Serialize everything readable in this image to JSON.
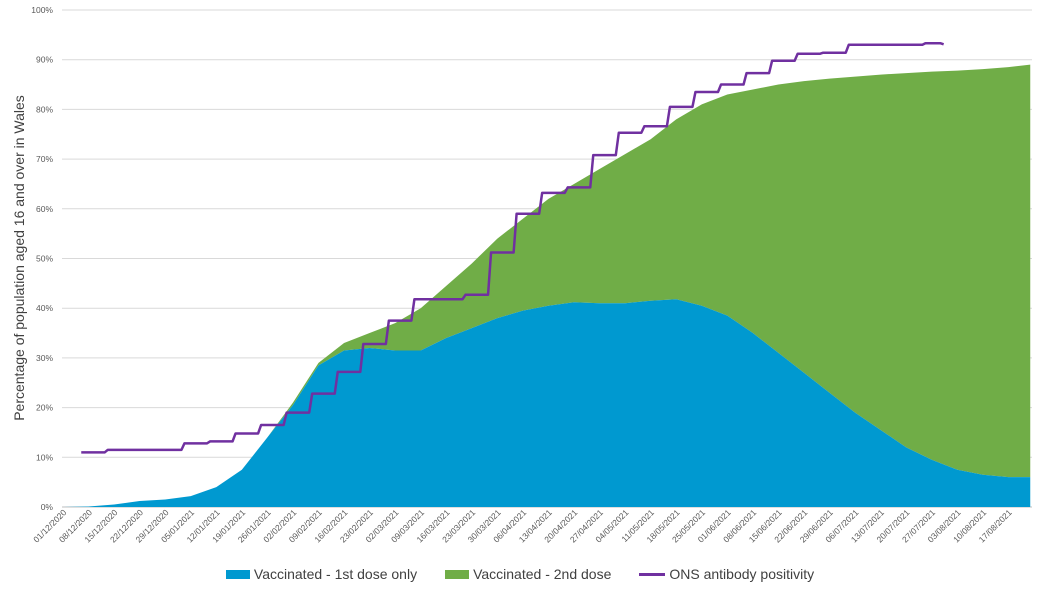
{
  "chart_data": {
    "type": "area",
    "stacked": true,
    "ylabel": "Percentage of population aged 16 and over in Wales",
    "ylim": [
      0,
      100
    ],
    "yticks": [
      "0%",
      "10%",
      "20%",
      "30%",
      "40%",
      "50%",
      "60%",
      "70%",
      "80%",
      "90%",
      "100%"
    ],
    "grid": true,
    "legend_position": "bottom",
    "xtick_labels": [
      "01/12/2020",
      "08/12/2020",
      "15/12/2020",
      "22/12/2020",
      "29/12/2020",
      "05/01/2021",
      "12/01/2021",
      "19/01/2021",
      "26/01/2021",
      "02/02/2021",
      "09/02/2021",
      "16/02/2021",
      "23/02/2021",
      "02/03/2021",
      "09/03/2021",
      "16/03/2021",
      "23/03/2021",
      "30/03/2021",
      "06/04/2021",
      "13/04/2021",
      "20/04/2021",
      "27/04/2021",
      "04/05/2021",
      "11/05/2021",
      "18/05/2021",
      "25/05/2021",
      "01/06/2021",
      "08/06/2021",
      "15/06/2021",
      "22/06/2021",
      "29/06/2021",
      "06/07/2021",
      "13/07/2021",
      "20/07/2021",
      "27/07/2021",
      "03/08/2021",
      "10/08/2021",
      "17/08/2021"
    ],
    "x": [
      "01/12/2020",
      "08/12/2020",
      "15/12/2020",
      "22/12/2020",
      "29/12/2020",
      "05/01/2021",
      "12/01/2021",
      "19/01/2021",
      "26/01/2021",
      "02/02/2021",
      "09/02/2021",
      "16/02/2021",
      "23/02/2021",
      "02/03/2021",
      "09/03/2021",
      "16/03/2021",
      "23/03/2021",
      "30/03/2021",
      "06/04/2021",
      "13/04/2021",
      "20/04/2021",
      "27/04/2021",
      "04/05/2021",
      "11/05/2021",
      "18/05/2021",
      "25/05/2021",
      "01/06/2021",
      "08/06/2021",
      "15/06/2021",
      "22/06/2021",
      "29/06/2021",
      "06/07/2021",
      "13/07/2021",
      "20/07/2021",
      "27/07/2021",
      "03/08/2021",
      "10/08/2021",
      "17/08/2021",
      "23/08/2021"
    ],
    "series": [
      {
        "name": "Vaccinated - 1st dose only",
        "type": "area",
        "color": "#0099D0",
        "values": [
          0,
          0.1,
          0.5,
          1.2,
          1.5,
          2.2,
          4,
          7.5,
          14,
          20.5,
          28.5,
          31.5,
          32,
          31.5,
          31.5,
          34,
          36,
          38,
          39.5,
          40.5,
          41.2,
          41,
          41,
          41.5,
          41.8,
          40.5,
          38.5,
          35,
          31,
          27,
          23,
          19,
          15.5,
          12,
          9.5,
          7.5,
          6.5,
          6,
          6
        ]
      },
      {
        "name": "Vaccinated - 2nd dose",
        "type": "area",
        "color": "#70AD47",
        "values": [
          0,
          0,
          0,
          0,
          0,
          0,
          0,
          0,
          0,
          0.5,
          0.5,
          1.5,
          3,
          5.5,
          8.5,
          10.5,
          13,
          16,
          18.5,
          21.5,
          23.8,
          27,
          30,
          32.5,
          36.2,
          40.5,
          44.5,
          49,
          54,
          58.7,
          63.2,
          67.6,
          71.5,
          75.3,
          78.1,
          80.3,
          81.6,
          82.5,
          83
        ]
      },
      {
        "name": "ONS antibody positivity",
        "type": "step-line",
        "color": "#7030A0",
        "x": [
          "06/12/2020",
          "13/12/2020",
          "20/12/2020",
          "27/12/2020",
          "03/01/2021",
          "10/01/2021",
          "17/01/2021",
          "24/01/2021",
          "31/01/2021",
          "07/02/2021",
          "14/02/2021",
          "21/02/2021",
          "28/02/2021",
          "07/03/2021",
          "14/03/2021",
          "21/03/2021",
          "28/03/2021",
          "04/04/2021",
          "11/04/2021",
          "18/04/2021",
          "25/04/2021",
          "02/05/2021",
          "09/05/2021",
          "16/05/2021",
          "23/05/2021",
          "30/05/2021",
          "06/06/2021",
          "13/06/2021",
          "20/06/2021",
          "27/06/2021",
          "04/07/2021",
          "11/07/2021",
          "18/07/2021",
          "25/07/2021",
          "30/07/2021"
        ],
        "values": [
          11,
          11.5,
          11.5,
          11.5,
          12.8,
          13.2,
          14.8,
          16.5,
          19,
          22.8,
          27.2,
          32.8,
          37.5,
          41.8,
          41.8,
          42.7,
          51.2,
          59,
          63.2,
          64.3,
          70.8,
          75.3,
          76.6,
          80.5,
          83.5,
          85,
          87.3,
          89.8,
          91.2,
          91.4,
          93,
          93,
          93,
          93.3,
          93.1
        ]
      }
    ]
  }
}
